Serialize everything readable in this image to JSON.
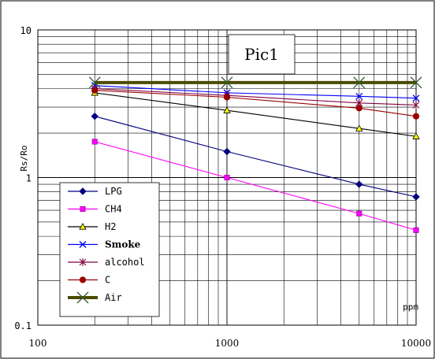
{
  "chart_data": {
    "type": "line",
    "title": "Pic1",
    "xlabel": "ppm",
    "ylabel": "Rs/Ro",
    "x_scale": "log",
    "y_scale": "log",
    "xlim": [
      100,
      10000
    ],
    "ylim": [
      0.1,
      10
    ],
    "x_ticks": [
      "100",
      "1000",
      "10000"
    ],
    "y_ticks": [
      "0.1",
      "1",
      "10"
    ],
    "grid": true,
    "legend_position": "bottom-left",
    "series": [
      {
        "name": "LPG",
        "color": "#000080",
        "marker": "diamond",
        "x": [
          200,
          1000,
          5000,
          10000
        ],
        "y": [
          2.6,
          1.5,
          0.9,
          0.74
        ]
      },
      {
        "name": "CH4",
        "color": "#ff00ff",
        "marker": "square",
        "x": [
          200,
          1000,
          5000,
          10000
        ],
        "y": [
          1.75,
          1.0,
          0.57,
          0.44
        ]
      },
      {
        "name": "H2",
        "color": "#000000",
        "marker": "triangle",
        "x": [
          200,
          1000,
          5000,
          10000
        ],
        "y": [
          3.75,
          2.85,
          2.15,
          1.9
        ]
      },
      {
        "name": "Smoke",
        "color": "#0000ff",
        "marker": "x",
        "x": [
          200,
          1000,
          5000,
          10000
        ],
        "y": [
          4.2,
          3.75,
          3.55,
          3.45
        ]
      },
      {
        "name": "alcohol",
        "color": "#800040",
        "marker": "asterisk",
        "x": [
          200,
          1000,
          5000,
          10000
        ],
        "y": [
          4.0,
          3.6,
          3.2,
          3.1
        ]
      },
      {
        "name": "C",
        "color": "#990000",
        "marker": "circle",
        "x": [
          200,
          1000,
          5000,
          10000
        ],
        "y": [
          3.9,
          3.5,
          2.95,
          2.6
        ]
      },
      {
        "name": "Air",
        "color": "#4b4b00",
        "marker": "x",
        "x": [
          200,
          1000,
          5000,
          10000
        ],
        "y": [
          4.4,
          4.4,
          4.4,
          4.4
        ]
      }
    ]
  }
}
